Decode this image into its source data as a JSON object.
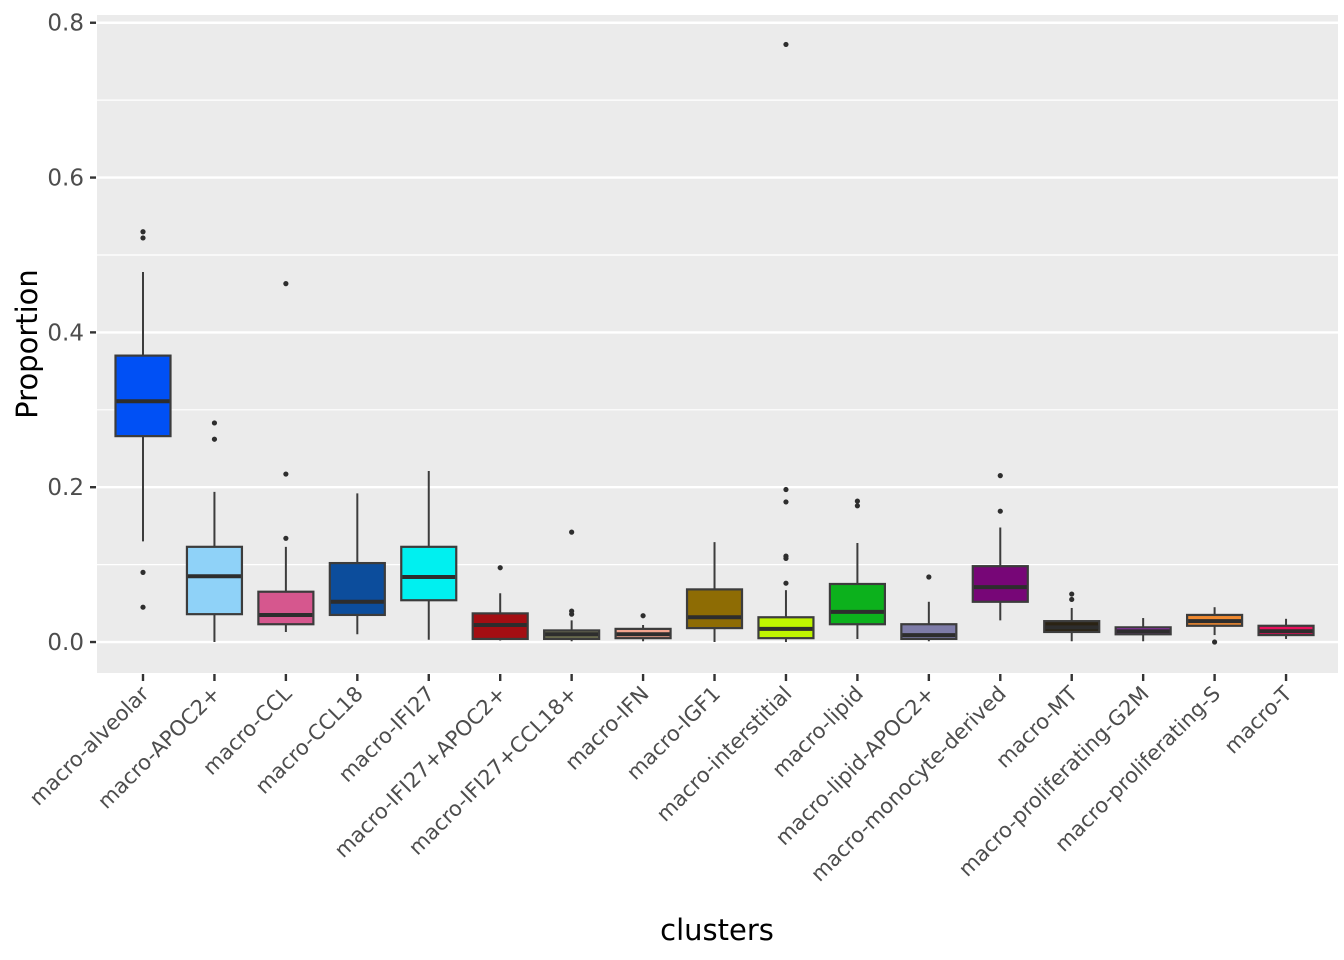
{
  "figure": {
    "background": "#FFFFFF",
    "panel_background": "#EBEBEB",
    "grid_major_color": "#FFFFFF",
    "grid_minor_color": "#FFFFFF",
    "axis_text_color": "#4D4D4D",
    "axis_title_color": "#000000",
    "tick_mark_color": "#333333",
    "box_border_color": "#3C3C3C",
    "median_color": "#2D2D2D",
    "outlier_color": "#2E2E2E"
  },
  "chart_data": {
    "type": "boxplot",
    "title": "",
    "xlabel": "clusters",
    "ylabel": "Proportion",
    "ylim": [
      -0.04,
      0.81
    ],
    "grid": true,
    "legend": "none",
    "yticks": {
      "values": [
        0.0,
        0.2,
        0.4,
        0.6,
        0.8
      ],
      "labels": [
        "0.0",
        "0.2",
        "0.4",
        "0.6",
        "0.8"
      ]
    },
    "yminor": [
      0.1,
      0.3,
      0.5,
      0.7
    ],
    "categories": [
      "macro-alveolar",
      "macro-APOC2+",
      "macro-CCL",
      "macro-CCL18",
      "macro-IFI27",
      "macro-IFI27+APOC2+",
      "macro-IFI27+CCL18+",
      "macro-IFN",
      "macro-IGF1",
      "macro-interstitial",
      "macro-lipid",
      "macro-lipid-APOC2+",
      "macro-monocyte-derived",
      "macro-MT",
      "macro-proliferating-G2M",
      "macro-proliferating-S",
      "macro-T"
    ],
    "boxes": [
      {
        "name": "macro-alveolar",
        "color": "#0050F5",
        "whisker_low": 0.13,
        "q1": 0.266,
        "median": 0.311,
        "q3": 0.37,
        "whisker_high": 0.478,
        "outliers": [
          0.53,
          0.522,
          0.09,
          0.045
        ]
      },
      {
        "name": "macro-APOC2+",
        "color": "#8FD2F8",
        "whisker_low": 0.0,
        "q1": 0.036,
        "median": 0.085,
        "q3": 0.123,
        "whisker_high": 0.194,
        "outliers": [
          0.283,
          0.262
        ]
      },
      {
        "name": "macro-CCL",
        "color": "#D6578E",
        "whisker_low": 0.013,
        "q1": 0.023,
        "median": 0.035,
        "q3": 0.065,
        "whisker_high": 0.123,
        "outliers": [
          0.463,
          0.217,
          0.134
        ]
      },
      {
        "name": "macro-CCL18",
        "color": "#0C4D9C",
        "whisker_low": 0.01,
        "q1": 0.035,
        "median": 0.052,
        "q3": 0.102,
        "whisker_high": 0.192,
        "outliers": []
      },
      {
        "name": "macro-IFI27",
        "color": "#00F0F0",
        "whisker_low": 0.003,
        "q1": 0.054,
        "median": 0.084,
        "q3": 0.123,
        "whisker_high": 0.221,
        "outliers": []
      },
      {
        "name": "macro-IFI27+APOC2+",
        "color": "#A40E13",
        "whisker_low": 0.002,
        "q1": 0.004,
        "median": 0.022,
        "q3": 0.037,
        "whisker_high": 0.063,
        "outliers": [
          0.096
        ]
      },
      {
        "name": "macro-IFI27+CCL18+",
        "color": "#6E7050",
        "whisker_low": 0.001,
        "q1": 0.004,
        "median": 0.01,
        "q3": 0.015,
        "whisker_high": 0.028,
        "outliers": [
          0.142,
          0.04,
          0.036
        ]
      },
      {
        "name": "macro-IFN",
        "color": "#F2A48F",
        "whisker_low": 0.001,
        "q1": 0.005,
        "median": 0.01,
        "q3": 0.017,
        "whisker_high": 0.022,
        "outliers": [
          0.034
        ]
      },
      {
        "name": "macro-IGF1",
        "color": "#8E6C04",
        "whisker_low": 0.0,
        "q1": 0.018,
        "median": 0.032,
        "q3": 0.068,
        "whisker_high": 0.129,
        "outliers": []
      },
      {
        "name": "macro-interstitial",
        "color": "#BFF400",
        "whisker_low": 0.0,
        "q1": 0.005,
        "median": 0.017,
        "q3": 0.032,
        "whisker_high": 0.067,
        "outliers": [
          0.772,
          0.197,
          0.181,
          0.111,
          0.108,
          0.076
        ]
      },
      {
        "name": "macro-lipid",
        "color": "#0CB11C",
        "whisker_low": 0.004,
        "q1": 0.023,
        "median": 0.039,
        "q3": 0.075,
        "whisker_high": 0.128,
        "outliers": [
          0.182,
          0.176
        ]
      },
      {
        "name": "macro-lipid-APOC2+",
        "color": "#7E7CA8",
        "whisker_low": 0.001,
        "q1": 0.004,
        "median": 0.009,
        "q3": 0.023,
        "whisker_high": 0.052,
        "outliers": [
          0.084
        ]
      },
      {
        "name": "macro-monocyte-derived",
        "color": "#770677",
        "whisker_low": 0.028,
        "q1": 0.052,
        "median": 0.071,
        "q3": 0.098,
        "whisker_high": 0.148,
        "outliers": [
          0.215,
          0.169
        ]
      },
      {
        "name": "macro-MT",
        "color": "#2A2213",
        "whisker_low": 0.001,
        "q1": 0.013,
        "median": 0.019,
        "q3": 0.027,
        "whisker_high": 0.044,
        "outliers": [
          0.062,
          0.055
        ]
      },
      {
        "name": "macro-proliferating-G2M",
        "color": "#A32CC4",
        "whisker_low": 0.001,
        "q1": 0.01,
        "median": 0.014,
        "q3": 0.019,
        "whisker_high": 0.031,
        "outliers": []
      },
      {
        "name": "macro-proliferating-S",
        "color": "#F08A30",
        "whisker_low": 0.009,
        "q1": 0.021,
        "median": 0.027,
        "q3": 0.035,
        "whisker_high": 0.045,
        "outliers": [
          0.0
        ]
      },
      {
        "name": "macro-T",
        "color": "#E8115C",
        "whisker_low": 0.004,
        "q1": 0.009,
        "median": 0.014,
        "q3": 0.021,
        "whisker_high": 0.03,
        "outliers": []
      }
    ]
  }
}
